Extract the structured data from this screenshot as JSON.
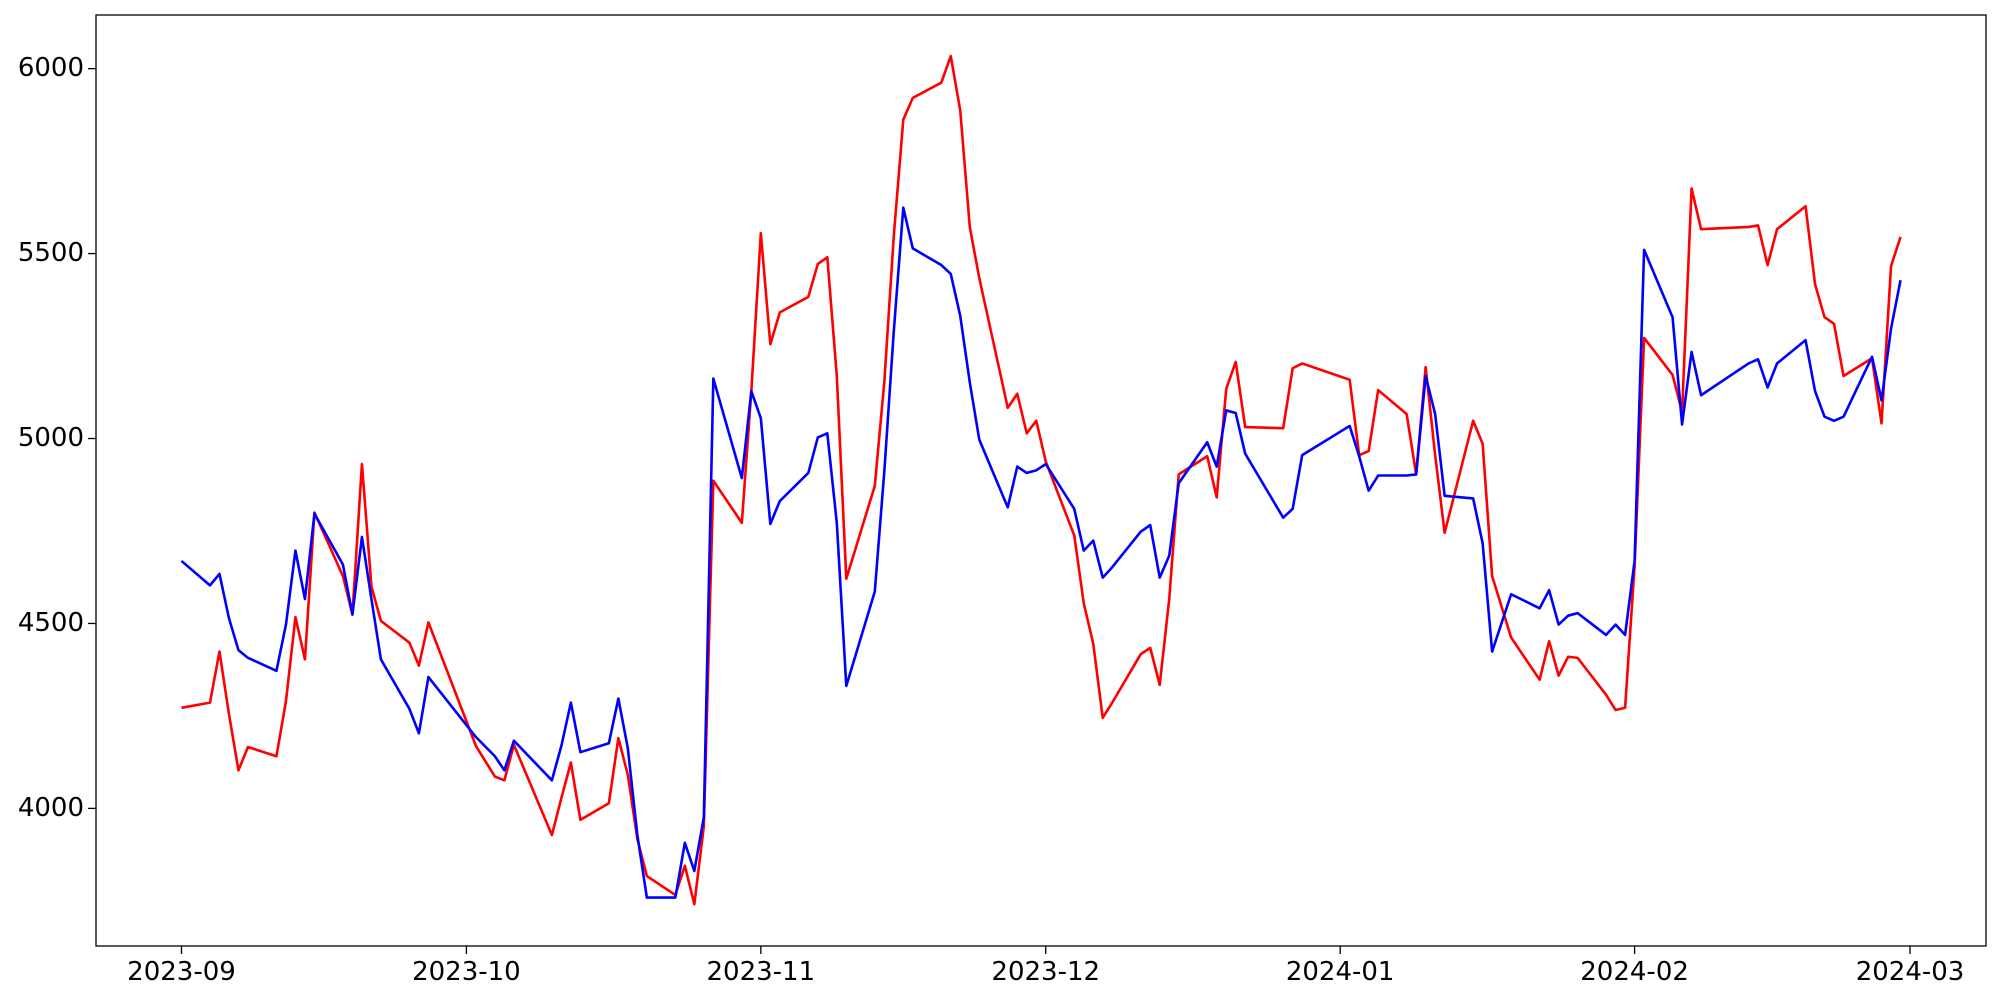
{
  "chart_data": {
    "type": "line",
    "x": [
      "2023-09-01",
      "2023-09-04",
      "2023-09-05",
      "2023-09-06",
      "2023-09-07",
      "2023-09-08",
      "2023-09-11",
      "2023-09-12",
      "2023-09-13",
      "2023-09-14",
      "2023-09-15",
      "2023-09-18",
      "2023-09-19",
      "2023-09-20",
      "2023-09-21",
      "2023-09-22",
      "2023-09-25",
      "2023-09-26",
      "2023-09-27",
      "2023-10-02",
      "2023-10-04",
      "2023-10-05",
      "2023-10-06",
      "2023-10-10",
      "2023-10-11",
      "2023-10-12",
      "2023-10-13",
      "2023-10-16",
      "2023-10-17",
      "2023-10-18",
      "2023-10-19",
      "2023-10-20",
      "2023-10-23",
      "2023-10-24",
      "2023-10-25",
      "2023-10-26",
      "2023-10-27",
      "2023-10-30",
      "2023-10-31",
      "2023-11-01",
      "2023-11-02",
      "2023-11-03",
      "2023-11-06",
      "2023-11-07",
      "2023-11-08",
      "2023-11-09",
      "2023-11-10",
      "2023-11-13",
      "2023-11-14",
      "2023-11-15",
      "2023-11-16",
      "2023-11-17",
      "2023-11-20",
      "2023-11-21",
      "2023-11-22",
      "2023-11-23",
      "2023-11-24",
      "2023-11-27",
      "2023-11-28",
      "2023-11-29",
      "2023-11-30",
      "2023-12-01",
      "2023-12-04",
      "2023-12-05",
      "2023-12-06",
      "2023-12-07",
      "2023-12-08",
      "2023-12-11",
      "2023-12-12",
      "2023-12-13",
      "2023-12-14",
      "2023-12-15",
      "2023-12-18",
      "2023-12-19",
      "2023-12-20",
      "2023-12-21",
      "2023-12-22",
      "2023-12-26",
      "2023-12-27",
      "2023-12-28",
      "2024-01-02",
      "2024-01-03",
      "2024-01-04",
      "2024-01-05",
      "2024-01-08",
      "2024-01-09",
      "2024-01-10",
      "2024-01-11",
      "2024-01-12",
      "2024-01-15",
      "2024-01-16",
      "2024-01-17",
      "2024-01-19",
      "2024-01-22",
      "2024-01-23",
      "2024-01-24",
      "2024-01-25",
      "2024-01-26",
      "2024-01-29",
      "2024-01-30",
      "2024-01-31",
      "2024-02-01",
      "2024-02-02",
      "2024-02-05",
      "2024-02-06",
      "2024-02-07",
      "2024-02-08",
      "2024-02-13",
      "2024-02-14",
      "2024-02-15",
      "2024-02-16",
      "2024-02-19",
      "2024-02-20",
      "2024-02-21",
      "2024-02-22",
      "2024-02-23",
      "2024-02-26",
      "2024-02-27",
      "2024-02-28",
      "2024-02-29"
    ],
    "series": [
      {
        "color": "#ff0000",
        "values": [
          4272,
          4286,
          4424,
          4255,
          4103,
          4166,
          4141,
          4290,
          4517,
          4403,
          4800,
          4628,
          4524,
          4931,
          4600,
          4507,
          4448,
          4386,
          4503,
          4169,
          4086,
          4076,
          4172,
          3928,
          4028,
          4124,
          3969,
          4014,
          4190,
          4090,
          3917,
          3817,
          3766,
          3845,
          3741,
          3952,
          4886,
          4772,
          5128,
          5555,
          5255,
          5341,
          5383,
          5472,
          5490,
          5169,
          4621,
          4872,
          5152,
          5548,
          5862,
          5921,
          5962,
          6034,
          5886,
          5572,
          5434,
          5083,
          5121,
          5014,
          5048,
          4938,
          4738,
          4555,
          4445,
          4245,
          4286,
          4417,
          4434,
          4334,
          4566,
          4903,
          4952,
          4841,
          5134,
          5207,
          5031,
          5028,
          5190,
          5203,
          5159,
          4955,
          4966,
          5131,
          5066,
          4903,
          5193,
          4955,
          4745,
          5048,
          4986,
          4628,
          4462,
          4348,
          4452,
          4359,
          4410,
          4407,
          4307,
          4266,
          4272,
          4655,
          5272,
          5172,
          5072,
          5676,
          5566,
          5572,
          5576,
          5469,
          5566,
          5628,
          5417,
          5328,
          5310,
          5169,
          5217,
          5041,
          5466,
          5545
        ]
      },
      {
        "color": "#0000ff",
        "values": [
          4669,
          4603,
          4634,
          4514,
          4428,
          4407,
          4372,
          4497,
          4697,
          4566,
          4797,
          4659,
          4524,
          4734,
          4566,
          4403,
          4269,
          4203,
          4355,
          4193,
          4141,
          4103,
          4183,
          4076,
          4169,
          4286,
          4152,
          4176,
          4297,
          4162,
          3928,
          3759,
          3759,
          3907,
          3831,
          3976,
          5162,
          4893,
          5128,
          5055,
          4769,
          4831,
          4907,
          5003,
          5014,
          4772,
          4331,
          4586,
          4910,
          5290,
          5624,
          5514,
          5469,
          5445,
          5331,
          5152,
          4997,
          4814,
          4924,
          4907,
          4914,
          4931,
          4810,
          4697,
          4724,
          4624,
          4652,
          4748,
          4766,
          4624,
          4683,
          4879,
          4990,
          4924,
          5076,
          5069,
          4959,
          4786,
          4810,
          4955,
          5034,
          4952,
          4859,
          4900,
          4900,
          4903,
          5169,
          5066,
          4845,
          4838,
          4717,
          4424,
          4579,
          4541,
          4590,
          4497,
          4521,
          4528,
          4469,
          4497,
          4469,
          4669,
          5510,
          5328,
          5038,
          5234,
          5117,
          5203,
          5214,
          5138,
          5203,
          5266,
          5128,
          5059,
          5048,
          5059,
          5221,
          5103,
          5297,
          5428
        ]
      }
    ],
    "xlim": [
      "2023-08-23",
      "2024-03-09"
    ],
    "xticks": [
      {
        "value": "2023-09-01",
        "label": "2023-09"
      },
      {
        "value": "2023-10-01",
        "label": "2023-10"
      },
      {
        "value": "2023-11-01",
        "label": "2023-11"
      },
      {
        "value": "2023-12-01",
        "label": "2023-12"
      },
      {
        "value": "2024-01-01",
        "label": "2024-01"
      },
      {
        "value": "2024-02-01",
        "label": "2024-02"
      },
      {
        "value": "2024-03-01",
        "label": "2024-03"
      }
    ],
    "ylim": [
      3628,
      6145
    ],
    "yticks": [
      4000,
      4500,
      5000,
      5500,
      6000
    ]
  }
}
